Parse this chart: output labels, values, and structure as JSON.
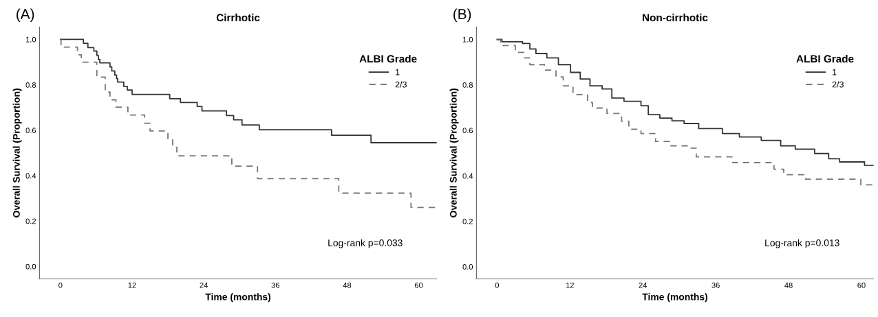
{
  "chart_data": [
    {
      "type": "step",
      "title": "Cirrhotic",
      "xlabel": "Time (months)",
      "ylabel": "Overall Survival (Proportion)",
      "legend_title": "ALBI Grade",
      "legend": "top right",
      "annotations": [
        "(A)",
        "Log-rank p=0.033"
      ],
      "xlim": [
        -3.5,
        63
      ],
      "ylim": [
        -0.055,
        1.055
      ],
      "xticks": [
        0,
        12,
        24,
        36,
        48,
        60
      ],
      "yticks": [
        {
          "value": 0,
          "label": "0.0"
        },
        {
          "value": 0.2,
          "label": "0.2"
        },
        {
          "value": 0.4,
          "label": "0.4"
        },
        {
          "value": 0.6,
          "label": "0.6"
        },
        {
          "value": 0.8,
          "label": "0.8"
        },
        {
          "value": 1,
          "label": "1.0"
        }
      ],
      "series": [
        {
          "name": "1",
          "color": "#333333",
          "line_style": "solid",
          "x": [
            0,
            3.85,
            4.6,
            5.6,
            6.1,
            6.35,
            6.6,
            8.3,
            8.6,
            9.1,
            9.4,
            9.6,
            10.6,
            11.2,
            12.0,
            18.3,
            20.1,
            22.9,
            23.7,
            27.8,
            29.0,
            30.4,
            33.3,
            45.4,
            52.0,
            63
          ],
          "values": [
            1.0,
            0.983,
            0.964,
            0.949,
            0.93,
            0.912,
            0.897,
            0.879,
            0.861,
            0.843,
            0.827,
            0.812,
            0.793,
            0.777,
            0.758,
            0.739,
            0.722,
            0.705,
            0.685,
            0.665,
            0.646,
            0.623,
            0.602,
            0.578,
            0.545,
            0.545
          ]
        },
        {
          "name": "2/3",
          "color": "#777777",
          "line_style": "dashed",
          "x": [
            0,
            0.1,
            2.86,
            3.5,
            6.1,
            7.5,
            8.3,
            9.3,
            11.3,
            14.1,
            15.0,
            18.0,
            18.8,
            19.5,
            28.7,
            33.0,
            46.6,
            58.7,
            63
          ],
          "values": [
            1.0,
            0.966,
            0.932,
            0.9,
            0.834,
            0.768,
            0.734,
            0.702,
            0.667,
            0.631,
            0.597,
            0.563,
            0.525,
            0.487,
            0.442,
            0.387,
            0.323,
            0.26,
            0.26
          ]
        }
      ]
    },
    {
      "type": "step",
      "title": "Non-cirrhotic",
      "xlabel": "Time (months)",
      "ylabel": "Overall Survival (Proportion)",
      "legend_title": "ALBI Grade",
      "legend": "top right",
      "annotations": [
        "(B)",
        "Log-rank p=0.013"
      ],
      "xlim": [
        -3.4,
        62
      ],
      "ylim": [
        -0.054,
        1.055
      ],
      "xticks": [
        0,
        12,
        24,
        36,
        48,
        60
      ],
      "yticks": [
        {
          "value": 0,
          "label": "0.0"
        },
        {
          "value": 0.2,
          "label": "0.2"
        },
        {
          "value": 0.4,
          "label": "0.4"
        },
        {
          "value": 0.6,
          "label": "0.6"
        },
        {
          "value": 0.8,
          "label": "0.8"
        },
        {
          "value": 1,
          "label": "1.0"
        }
      ],
      "series": [
        {
          "name": "1",
          "color": "#333333",
          "line_style": "solid",
          "x": [
            0,
            0.8,
            4.2,
            5.4,
            6.4,
            8.2,
            10.1,
            12.1,
            13.7,
            15.3,
            17.3,
            18.9,
            20.9,
            23.7,
            24.9,
            26.8,
            28.8,
            30.8,
            33.2,
            37.1,
            39.9,
            43.5,
            46.7,
            49.1,
            52.3,
            54.6,
            56.4,
            60.5,
            62
          ],
          "values": [
            1.0,
            0.99,
            0.982,
            0.958,
            0.938,
            0.919,
            0.889,
            0.855,
            0.826,
            0.796,
            0.782,
            0.742,
            0.728,
            0.708,
            0.669,
            0.654,
            0.642,
            0.63,
            0.608,
            0.586,
            0.571,
            0.556,
            0.532,
            0.517,
            0.498,
            0.475,
            0.461,
            0.446,
            0.446
          ]
        },
        {
          "name": "2/3",
          "color": "#777777",
          "line_style": "dashed",
          "x": [
            0,
            0.6,
            3.0,
            4.4,
            5.4,
            7.8,
            9.7,
            10.9,
            12.5,
            14.9,
            15.7,
            18.1,
            20.5,
            21.7,
            23.7,
            26.1,
            28.4,
            31.6,
            32.8,
            38.8,
            45.6,
            47.2,
            50.8,
            59.9,
            62
          ],
          "values": [
            0.998,
            0.973,
            0.943,
            0.919,
            0.889,
            0.865,
            0.835,
            0.796,
            0.757,
            0.723,
            0.698,
            0.674,
            0.64,
            0.605,
            0.586,
            0.551,
            0.532,
            0.522,
            0.483,
            0.458,
            0.429,
            0.405,
            0.385,
            0.36,
            0.36
          ]
        }
      ]
    }
  ]
}
